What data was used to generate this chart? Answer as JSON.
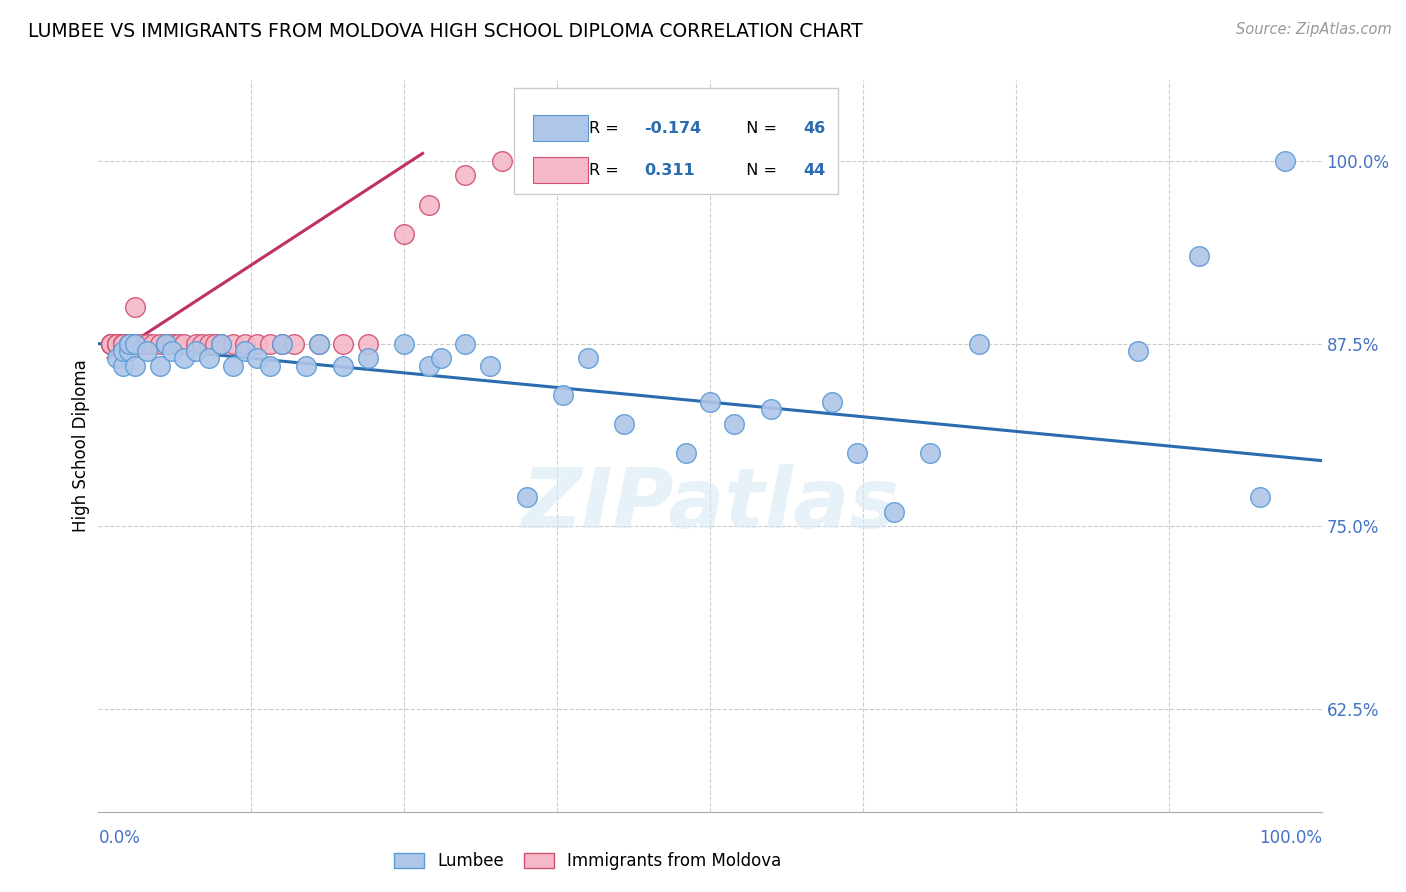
{
  "title": "LUMBEE VS IMMIGRANTS FROM MOLDOVA HIGH SCHOOL DIPLOMA CORRELATION CHART",
  "source": "Source: ZipAtlas.com",
  "ylabel": "High School Diploma",
  "yticks": [
    0.625,
    0.75,
    0.875,
    1.0
  ],
  "ytick_labels": [
    "62.5%",
    "75.0%",
    "87.5%",
    "100.0%"
  ],
  "xlim": [
    0.0,
    1.0
  ],
  "ylim": [
    0.555,
    1.055
  ],
  "r_lumbee": -0.174,
  "n_lumbee": 46,
  "r_moldova": 0.311,
  "n_moldova": 44,
  "lumbee_color": "#aec6e8",
  "lumbee_edge_color": "#5b9bd5",
  "moldova_color": "#f4b8c8",
  "moldova_edge_color": "#d05070",
  "trend_lumbee_color": "#2b6cb0",
  "trend_moldova_color": "#c03060",
  "watermark": "ZIPatlas",
  "lumbee_x": [
    0.015,
    0.02,
    0.02,
    0.025,
    0.025,
    0.03,
    0.03,
    0.04,
    0.05,
    0.055,
    0.06,
    0.07,
    0.08,
    0.09,
    0.1,
    0.11,
    0.12,
    0.13,
    0.14,
    0.15,
    0.17,
    0.18,
    0.2,
    0.22,
    0.25,
    0.27,
    0.28,
    0.3,
    0.32,
    0.35,
    0.38,
    0.4,
    0.43,
    0.48,
    0.5,
    0.52,
    0.55,
    0.6,
    0.62,
    0.65,
    0.68,
    0.72,
    0.85,
    0.9,
    0.95,
    0.97
  ],
  "lumbee_y": [
    0.865,
    0.86,
    0.87,
    0.87,
    0.875,
    0.86,
    0.875,
    0.87,
    0.86,
    0.875,
    0.87,
    0.865,
    0.87,
    0.865,
    0.875,
    0.86,
    0.87,
    0.865,
    0.86,
    0.875,
    0.86,
    0.875,
    0.86,
    0.865,
    0.875,
    0.86,
    0.865,
    0.875,
    0.86,
    0.77,
    0.84,
    0.865,
    0.82,
    0.8,
    0.835,
    0.82,
    0.83,
    0.835,
    0.8,
    0.76,
    0.8,
    0.875,
    0.87,
    0.935,
    0.77,
    1.0
  ],
  "moldova_x": [
    0.01,
    0.01,
    0.01,
    0.01,
    0.01,
    0.015,
    0.015,
    0.015,
    0.02,
    0.02,
    0.02,
    0.02,
    0.025,
    0.025,
    0.03,
    0.03,
    0.03,
    0.035,
    0.04,
    0.04,
    0.045,
    0.05,
    0.055,
    0.06,
    0.065,
    0.07,
    0.08,
    0.085,
    0.09,
    0.095,
    0.1,
    0.11,
    0.12,
    0.13,
    0.14,
    0.15,
    0.16,
    0.18,
    0.2,
    0.22,
    0.25,
    0.27,
    0.3,
    0.33
  ],
  "moldova_y": [
    0.875,
    0.875,
    0.875,
    0.875,
    0.875,
    0.875,
    0.875,
    0.875,
    0.875,
    0.875,
    0.875,
    0.875,
    0.875,
    0.875,
    0.875,
    0.875,
    0.9,
    0.875,
    0.875,
    0.875,
    0.875,
    0.875,
    0.875,
    0.875,
    0.875,
    0.875,
    0.875,
    0.875,
    0.875,
    0.875,
    0.875,
    0.875,
    0.875,
    0.875,
    0.875,
    0.875,
    0.875,
    0.875,
    0.875,
    0.875,
    0.95,
    0.97,
    0.99,
    1.0
  ],
  "trend_lumbee_x0": 0.0,
  "trend_lumbee_x1": 1.0,
  "trend_lumbee_y0": 0.875,
  "trend_lumbee_y1": 0.795,
  "trend_moldova_x0": 0.008,
  "trend_moldova_x1": 0.265,
  "trend_moldova_y0": 0.865,
  "trend_moldova_y1": 1.005
}
